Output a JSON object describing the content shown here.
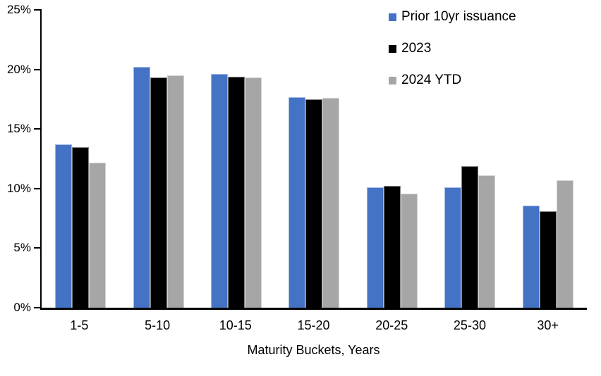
{
  "chart_data": {
    "type": "bar",
    "title": "",
    "xlabel": "Maturity Buckets, Years",
    "ylabel": "",
    "ylim": [
      0,
      25
    ],
    "ytick_step": 5,
    "ytick_suffix": "%",
    "grid": false,
    "legend_position": "top-right-inside",
    "categories": [
      "1-5",
      "5-10",
      "10-15",
      "15-20",
      "20-25",
      "25-30",
      "30+"
    ],
    "series": [
      {
        "name": "Prior 10yr issuance",
        "color": "#4472C4",
        "values": [
          13.7,
          20.2,
          19.6,
          17.7,
          10.1,
          10.1,
          8.6
        ]
      },
      {
        "name": "2023",
        "color": "#000000",
        "values": [
          13.5,
          19.3,
          19.4,
          17.5,
          10.2,
          11.9,
          8.1
        ]
      },
      {
        "name": "2024 YTD",
        "color": "#A6A6A6",
        "values": [
          12.2,
          19.5,
          19.3,
          17.6,
          9.6,
          11.1,
          10.7
        ]
      }
    ]
  },
  "colors": {
    "axis": "#000000",
    "background": "#FFFFFF"
  }
}
